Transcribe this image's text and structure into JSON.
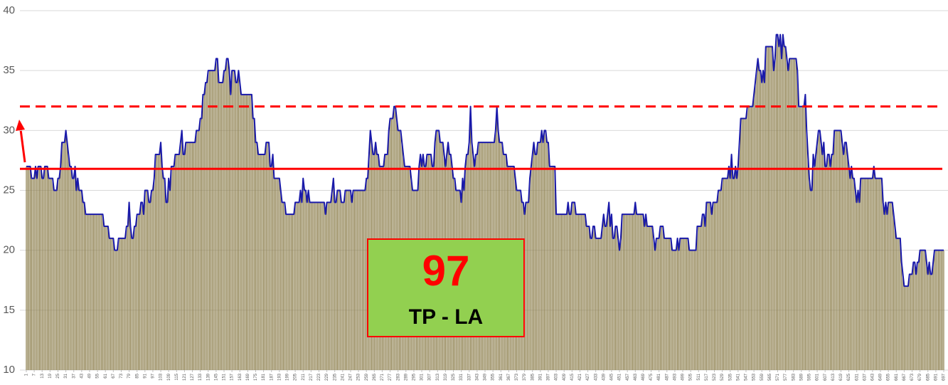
{
  "chart_data": {
    "type": "bar-line",
    "values": [
      27,
      27,
      27,
      27,
      26,
      26,
      26,
      27,
      26,
      27,
      27,
      27,
      26,
      26,
      27,
      27,
      27,
      26,
      26,
      26,
      26,
      25,
      25,
      25,
      26,
      26,
      27,
      29,
      29,
      29,
      30,
      29,
      28,
      27,
      27,
      26,
      26,
      27,
      25,
      26,
      25,
      25,
      25,
      24,
      24,
      23,
      23,
      23,
      23,
      23,
      23,
      23,
      23,
      23,
      23,
      23,
      23,
      23,
      23,
      22,
      22,
      22,
      22,
      21,
      21,
      21,
      21,
      20,
      20,
      20,
      21,
      21,
      21,
      21,
      21,
      21,
      22,
      22,
      24,
      22,
      21,
      21,
      22,
      22,
      23,
      23,
      23,
      24,
      24,
      23,
      25,
      25,
      25,
      24,
      24,
      25,
      25,
      26,
      28,
      28,
      28,
      28,
      29,
      27,
      26,
      26,
      24,
      24,
      26,
      25,
      27,
      27,
      27,
      28,
      28,
      28,
      28,
      29,
      30,
      28,
      28,
      29,
      29,
      29,
      29,
      29,
      29,
      29,
      29,
      30,
      30,
      30,
      31,
      31,
      33,
      33,
      34,
      34,
      35,
      35,
      35,
      35,
      35,
      35,
      36,
      36,
      34,
      34,
      34,
      34,
      35,
      35,
      36,
      36,
      35,
      33,
      35,
      35,
      35,
      34,
      34,
      35,
      34,
      33,
      33,
      33,
      33,
      33,
      33,
      33,
      33,
      33,
      31,
      31,
      29,
      29,
      28,
      28,
      28,
      28,
      28,
      28,
      29,
      29,
      29,
      27,
      27,
      28,
      26,
      26,
      26,
      26,
      26,
      25,
      24,
      24,
      24,
      23,
      23,
      23,
      23,
      23,
      23,
      23,
      24,
      24,
      24,
      24,
      25,
      24,
      26,
      25,
      25,
      24,
      25,
      24,
      24,
      24,
      24,
      24,
      24,
      24,
      24,
      24,
      24,
      24,
      24,
      23,
      24,
      24,
      24,
      24,
      25,
      26,
      24,
      24,
      25,
      25,
      25,
      24,
      24,
      24,
      25,
      25,
      25,
      25,
      25,
      24,
      25,
      25,
      25,
      25,
      25,
      25,
      25,
      25,
      25,
      25,
      26,
      26,
      28,
      30,
      29,
      28,
      28,
      29,
      28,
      28,
      27,
      27,
      27,
      27,
      28,
      28,
      28,
      30,
      31,
      31,
      31,
      32,
      32,
      31,
      30,
      30,
      30,
      29,
      28,
      27,
      27,
      27,
      27,
      27,
      26,
      25,
      25,
      25,
      25,
      25,
      27,
      28,
      27,
      28,
      27,
      27,
      28,
      28,
      28,
      28,
      27,
      27,
      29,
      30,
      30,
      30,
      29,
      29,
      29,
      28,
      27,
      28,
      29,
      28,
      28,
      27,
      26,
      26,
      25,
      25,
      25,
      25,
      24,
      26,
      25,
      27,
      28,
      28,
      29,
      32,
      29,
      28,
      27,
      28,
      28,
      29,
      29,
      29,
      29,
      29,
      29,
      29,
      29,
      29,
      29,
      29,
      29,
      29,
      30,
      32,
      30,
      29,
      29,
      29,
      28,
      28,
      28,
      27,
      27,
      27,
      27,
      27,
      27,
      26,
      25,
      25,
      25,
      25,
      24,
      24,
      23,
      24,
      24,
      24,
      26,
      27,
      28,
      29,
      28,
      28,
      29,
      29,
      29,
      30,
      29,
      30,
      30,
      29,
      29,
      27,
      27,
      27,
      27,
      27,
      23,
      23,
      23,
      23,
      23,
      23,
      23,
      23,
      23,
      24,
      23,
      23,
      24,
      24,
      24,
      23,
      23,
      23,
      23,
      23,
      23,
      23,
      23,
      22,
      22,
      22,
      21,
      21,
      22,
      22,
      21,
      21,
      21,
      21,
      21,
      22,
      23,
      22,
      22,
      23,
      24,
      22,
      23,
      21,
      21,
      22,
      22,
      21,
      20,
      21,
      23,
      23,
      23,
      23,
      23,
      23,
      23,
      23,
      23,
      23,
      24,
      23,
      23,
      23,
      23,
      23,
      23,
      22,
      23,
      22,
      22,
      22,
      22,
      22,
      21,
      20,
      21,
      21,
      21,
      22,
      22,
      22,
      21,
      21,
      21,
      21,
      21,
      21,
      20,
      20,
      20,
      20,
      21,
      20,
      21,
      21,
      21,
      21,
      21,
      21,
      21,
      20,
      20,
      20,
      20,
      20,
      20,
      22,
      22,
      22,
      22,
      23,
      23,
      22,
      24,
      24,
      24,
      24,
      23,
      24,
      24,
      24,
      24,
      25,
      25,
      25,
      26,
      26,
      26,
      26,
      26,
      27,
      26,
      28,
      26,
      26,
      27,
      26,
      27,
      29,
      31,
      31,
      31,
      31,
      31,
      32,
      32,
      32,
      32,
      32,
      33,
      34,
      35,
      36,
      35,
      35,
      34,
      35,
      34,
      37,
      37,
      37,
      37,
      37,
      37,
      35,
      36,
      38,
      38,
      37,
      38,
      36,
      38,
      37,
      37,
      36,
      35,
      36,
      36,
      36,
      36,
      36,
      36,
      35,
      32,
      32,
      32,
      32,
      32,
      33,
      30,
      28,
      26,
      25,
      25,
      28,
      27,
      28,
      29,
      30,
      30,
      29,
      28,
      29,
      27,
      27,
      28,
      28,
      27,
      28,
      28,
      30,
      30,
      30,
      30,
      30,
      30,
      29,
      28,
      29,
      29,
      28,
      27,
      26,
      27,
      26,
      26,
      25,
      24,
      25,
      24,
      26,
      26,
      26,
      26,
      26,
      26,
      26,
      26,
      26,
      26,
      27,
      26,
      26,
      26,
      26,
      26,
      26,
      24,
      23,
      24,
      23,
      24,
      24,
      24,
      24,
      23,
      22,
      21,
      21,
      21,
      21,
      19,
      18,
      17,
      17,
      17,
      17,
      18,
      18,
      18,
      19,
      19,
      18,
      19,
      19,
      20,
      20,
      20,
      20,
      20,
      19,
      18,
      19,
      18,
      18,
      19,
      20,
      20,
      20,
      20,
      20,
      20,
      20,
      20
    ],
    "bar_color": "#8c7e4c",
    "line_color": "#1a1aaa",
    "xlim": [
      1,
      697
    ],
    "xticks": [
      1,
      7,
      13,
      19,
      25,
      31,
      37,
      43,
      49,
      55,
      61,
      67,
      73,
      79,
      85,
      91,
      97,
      103,
      109,
      115,
      121,
      127,
      133,
      139,
      145,
      151,
      157,
      163,
      169,
      175,
      181,
      187,
      193,
      199,
      205,
      211,
      217,
      223,
      229,
      235,
      241,
      247,
      253,
      259,
      265,
      271,
      277,
      283,
      289,
      295,
      301,
      307,
      313,
      319,
      325,
      331,
      337,
      343,
      349,
      355,
      361,
      367,
      373,
      379,
      385,
      391,
      397,
      403,
      409,
      415,
      421,
      427,
      433,
      439,
      445,
      451,
      457,
      463,
      469,
      475,
      481,
      487,
      493,
      499,
      505,
      511,
      517,
      523,
      529,
      535,
      541,
      547,
      553,
      559,
      565,
      571,
      577,
      583,
      589,
      595,
      601,
      607,
      613,
      619,
      625,
      631,
      637,
      643,
      649,
      655,
      661,
      667,
      673,
      679,
      685,
      691,
      697
    ],
    "ylim": [
      10,
      40
    ],
    "yticks": [
      10,
      15,
      20,
      25,
      30,
      35,
      40
    ],
    "grid": true,
    "reference_lines": [
      {
        "value": 26.8,
        "style": "solid",
        "color": "#ff0000"
      },
      {
        "value": 32,
        "style": "dashed",
        "color": "#ff0000"
      }
    ],
    "annotation": {
      "number": "97",
      "label": "TP - LA"
    }
  }
}
